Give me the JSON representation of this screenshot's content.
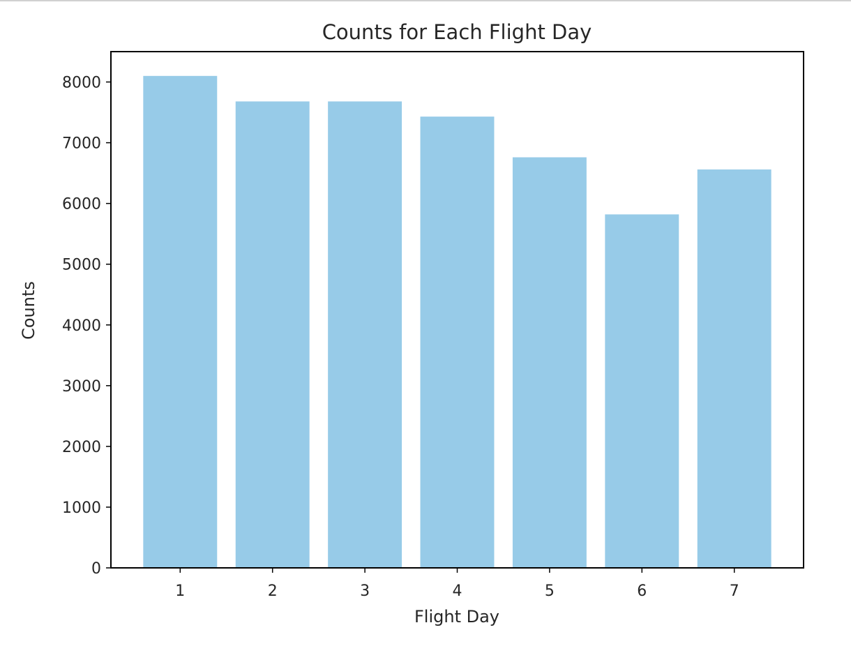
{
  "chart_data": {
    "type": "bar",
    "title": "Counts for Each Flight Day",
    "xlabel": "Flight Day",
    "ylabel": "Counts",
    "categories": [
      "1",
      "2",
      "3",
      "4",
      "5",
      "6",
      "7"
    ],
    "values": [
      8100,
      7680,
      7680,
      7430,
      6760,
      5820,
      6560
    ],
    "ylim": [
      0,
      8500
    ],
    "yticks": [
      0,
      1000,
      2000,
      3000,
      4000,
      5000,
      6000,
      7000,
      8000
    ],
    "ytick_labels": [
      "0",
      "1000",
      "2000",
      "3000",
      "4000",
      "5000",
      "6000",
      "7000",
      "8000"
    ],
    "bar_color": "#97cbe8",
    "grid": false,
    "legend": "none"
  }
}
